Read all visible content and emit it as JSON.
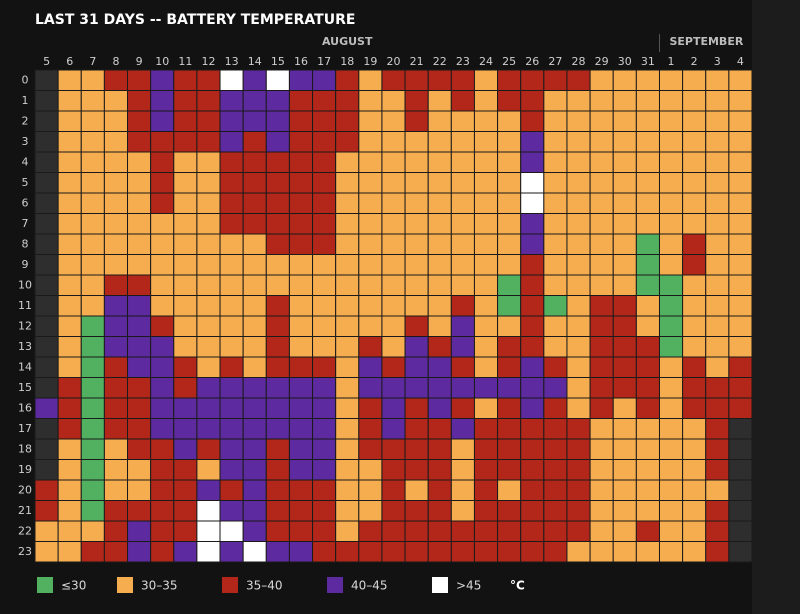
{
  "chart_data": {
    "type": "heatmap",
    "title": "LAST 31 DAYS -- BATTERY TEMPERATURE",
    "months": [
      "AUGUST",
      "SEPTEMBER"
    ],
    "x": [
      5,
      6,
      7,
      8,
      9,
      10,
      11,
      12,
      13,
      14,
      15,
      16,
      17,
      18,
      19,
      20,
      21,
      22,
      23,
      24,
      25,
      26,
      27,
      28,
      29,
      30,
      31,
      1,
      2,
      3,
      4
    ],
    "y": [
      0,
      1,
      2,
      3,
      4,
      5,
      6,
      7,
      8,
      9,
      10,
      11,
      12,
      13,
      14,
      15,
      16,
      17,
      18,
      19,
      20,
      21,
      22,
      23
    ],
    "bins": [
      {
        "label": "≤30",
        "color": "#52b160"
      },
      {
        "label": "30–35",
        "color": "#f5ad4f"
      },
      {
        "label": "35–40",
        "color": "#b3271b"
      },
      {
        "label": "40–45",
        "color": "#5e2a9f"
      },
      {
        "label": ">45",
        "color": "#ffffff"
      }
    ],
    "unit": "°C",
    "no_data_color": "#2e2e2e",
    "values": [
      [
        null,
        1,
        1,
        2,
        2,
        3,
        2,
        2,
        4,
        3,
        4,
        3,
        3,
        2,
        1,
        2,
        2,
        2,
        2,
        1,
        2,
        2,
        2,
        2,
        1,
        1,
        1,
        1,
        1,
        1,
        1
      ],
      [
        null,
        1,
        1,
        1,
        2,
        3,
        2,
        2,
        3,
        3,
        3,
        2,
        2,
        2,
        1,
        1,
        2,
        1,
        2,
        1,
        2,
        2,
        1,
        1,
        1,
        1,
        1,
        1,
        1,
        1,
        1
      ],
      [
        null,
        1,
        1,
        1,
        2,
        3,
        2,
        2,
        3,
        3,
        3,
        2,
        2,
        2,
        1,
        1,
        2,
        1,
        1,
        1,
        1,
        2,
        1,
        1,
        1,
        1,
        1,
        1,
        1,
        1,
        1
      ],
      [
        null,
        1,
        1,
        1,
        2,
        2,
        2,
        2,
        3,
        2,
        3,
        2,
        2,
        2,
        1,
        1,
        1,
        1,
        1,
        1,
        1,
        3,
        1,
        1,
        1,
        1,
        1,
        1,
        1,
        1,
        1
      ],
      [
        null,
        1,
        1,
        1,
        1,
        2,
        1,
        1,
        2,
        2,
        2,
        2,
        2,
        1,
        1,
        1,
        1,
        1,
        1,
        1,
        1,
        3,
        1,
        1,
        1,
        1,
        1,
        1,
        1,
        1,
        1
      ],
      [
        null,
        1,
        1,
        1,
        1,
        2,
        1,
        1,
        2,
        2,
        2,
        2,
        2,
        1,
        1,
        1,
        1,
        1,
        1,
        1,
        1,
        4,
        1,
        1,
        1,
        1,
        1,
        1,
        1,
        1,
        1
      ],
      [
        null,
        1,
        1,
        1,
        1,
        2,
        1,
        1,
        2,
        2,
        2,
        2,
        2,
        1,
        1,
        1,
        1,
        1,
        1,
        1,
        1,
        4,
        1,
        1,
        1,
        1,
        1,
        1,
        1,
        1,
        1
      ],
      [
        null,
        1,
        1,
        1,
        1,
        1,
        1,
        1,
        2,
        2,
        2,
        2,
        2,
        1,
        1,
        1,
        1,
        1,
        1,
        1,
        1,
        3,
        1,
        1,
        1,
        1,
        1,
        1,
        1,
        1,
        1
      ],
      [
        null,
        1,
        1,
        1,
        1,
        1,
        1,
        1,
        1,
        1,
        2,
        2,
        2,
        1,
        1,
        1,
        1,
        1,
        1,
        1,
        1,
        3,
        1,
        1,
        1,
        1,
        0,
        1,
        2,
        1,
        1
      ],
      [
        null,
        1,
        1,
        1,
        1,
        1,
        1,
        1,
        1,
        1,
        1,
        1,
        1,
        1,
        1,
        1,
        1,
        1,
        1,
        1,
        1,
        2,
        1,
        1,
        1,
        1,
        0,
        1,
        2,
        1,
        1
      ],
      [
        null,
        1,
        1,
        2,
        2,
        1,
        1,
        1,
        1,
        1,
        1,
        1,
        1,
        1,
        1,
        1,
        1,
        1,
        1,
        1,
        0,
        2,
        1,
        1,
        1,
        1,
        0,
        0,
        1,
        1,
        1
      ],
      [
        null,
        1,
        1,
        3,
        3,
        1,
        1,
        1,
        1,
        1,
        2,
        1,
        1,
        1,
        1,
        1,
        1,
        1,
        2,
        1,
        0,
        2,
        0,
        1,
        2,
        2,
        1,
        0,
        1,
        1,
        1
      ],
      [
        null,
        1,
        0,
        3,
        3,
        2,
        1,
        1,
        1,
        1,
        2,
        1,
        1,
        1,
        1,
        1,
        2,
        1,
        3,
        1,
        1,
        2,
        1,
        1,
        2,
        2,
        1,
        0,
        1,
        1,
        1
      ],
      [
        null,
        1,
        0,
        3,
        3,
        3,
        1,
        1,
        1,
        1,
        2,
        1,
        1,
        1,
        2,
        1,
        3,
        2,
        3,
        1,
        2,
        2,
        1,
        1,
        2,
        2,
        2,
        0,
        1,
        1,
        1
      ],
      [
        null,
        1,
        0,
        2,
        3,
        3,
        2,
        1,
        2,
        1,
        2,
        2,
        2,
        1,
        3,
        2,
        3,
        3,
        2,
        1,
        2,
        3,
        2,
        1,
        2,
        2,
        2,
        1,
        2,
        1,
        2
      ],
      [
        null,
        2,
        0,
        2,
        2,
        3,
        2,
        3,
        3,
        3,
        3,
        3,
        3,
        1,
        3,
        3,
        3,
        3,
        3,
        3,
        3,
        3,
        3,
        1,
        2,
        2,
        2,
        1,
        2,
        2,
        2
      ],
      [
        3,
        2,
        0,
        2,
        2,
        3,
        3,
        3,
        3,
        3,
        3,
        3,
        3,
        1,
        2,
        3,
        2,
        3,
        2,
        1,
        2,
        3,
        2,
        1,
        2,
        1,
        2,
        1,
        2,
        2,
        2
      ],
      [
        null,
        2,
        0,
        2,
        2,
        3,
        3,
        3,
        3,
        3,
        3,
        3,
        3,
        1,
        2,
        3,
        2,
        2,
        3,
        2,
        2,
        2,
        2,
        2,
        1,
        1,
        1,
        1,
        1,
        2,
        null
      ],
      [
        null,
        1,
        0,
        1,
        2,
        2,
        3,
        2,
        3,
        3,
        2,
        3,
        3,
        1,
        2,
        2,
        2,
        2,
        1,
        2,
        2,
        2,
        2,
        2,
        1,
        1,
        1,
        1,
        1,
        2,
        null
      ],
      [
        null,
        1,
        0,
        1,
        1,
        2,
        2,
        1,
        3,
        3,
        2,
        3,
        3,
        1,
        1,
        2,
        2,
        2,
        1,
        2,
        2,
        2,
        2,
        2,
        1,
        1,
        1,
        1,
        1,
        2,
        null
      ],
      [
        2,
        1,
        0,
        1,
        1,
        2,
        2,
        3,
        2,
        3,
        2,
        2,
        2,
        1,
        1,
        2,
        1,
        2,
        1,
        2,
        1,
        2,
        2,
        2,
        1,
        1,
        1,
        1,
        1,
        1,
        null
      ],
      [
        2,
        1,
        0,
        2,
        2,
        2,
        2,
        4,
        3,
        3,
        2,
        2,
        2,
        1,
        1,
        2,
        2,
        2,
        1,
        2,
        2,
        2,
        2,
        2,
        1,
        1,
        1,
        1,
        1,
        2,
        null
      ],
      [
        1,
        1,
        1,
        2,
        3,
        2,
        2,
        4,
        4,
        3,
        2,
        2,
        2,
        1,
        2,
        2,
        2,
        2,
        2,
        2,
        2,
        2,
        2,
        2,
        1,
        1,
        2,
        1,
        1,
        2,
        null
      ],
      [
        1,
        1,
        2,
        2,
        3,
        2,
        3,
        4,
        3,
        4,
        3,
        3,
        2,
        2,
        2,
        2,
        2,
        2,
        2,
        2,
        2,
        2,
        2,
        1,
        1,
        1,
        1,
        1,
        1,
        2,
        null
      ]
    ]
  }
}
